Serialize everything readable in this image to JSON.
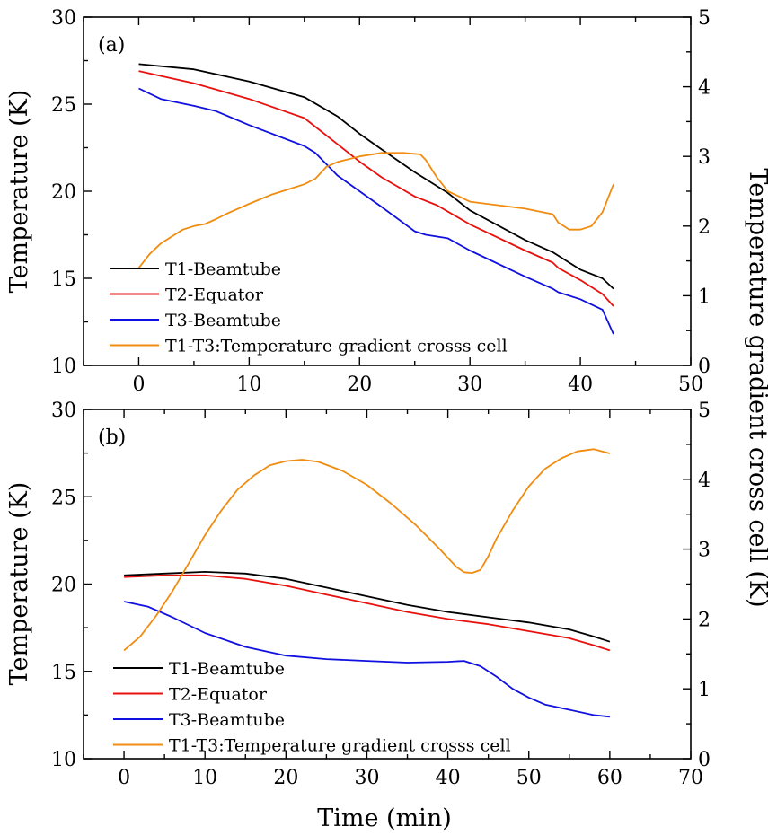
{
  "colors": {
    "t1": "#000000",
    "t2": "#e8110e",
    "t3": "#1010e0",
    "gradient": "#f08c10"
  },
  "shared": {
    "xlabel": "Time (min)",
    "ylabel_left": "Temperature (K)",
    "ylabel_right": "Temperature gradient cross cell (K)"
  },
  "chart_data": [
    {
      "type": "line",
      "panel_label": "(a)",
      "xlim": [
        -5,
        50
      ],
      "xticks": [
        0,
        10,
        20,
        30,
        40,
        50
      ],
      "ylim_left": [
        10,
        30
      ],
      "yticks_left": [
        10,
        15,
        20,
        25,
        30
      ],
      "ylim_right": [
        0,
        5
      ],
      "yticks_right": [
        0,
        1,
        2,
        3,
        4,
        5
      ],
      "grid": false,
      "legend_position": "bottom-left",
      "series": [
        {
          "name": "T1-Beamtube",
          "color_key": "t1",
          "axis": "left",
          "x": [
            0,
            5,
            10,
            15,
            18,
            20,
            22,
            25,
            28,
            30,
            35,
            37.5,
            38,
            40,
            42,
            43
          ],
          "y": [
            27.3,
            27.0,
            26.3,
            25.4,
            24.3,
            23.3,
            22.4,
            21.1,
            19.9,
            18.9,
            17.2,
            16.5,
            16.3,
            15.5,
            15.0,
            14.4
          ]
        },
        {
          "name": "T2-Equator",
          "color_key": "t2",
          "axis": "left",
          "x": [
            0,
            5,
            10,
            15,
            18,
            20,
            22,
            25,
            27,
            30,
            35,
            37.5,
            38,
            40,
            42,
            43
          ],
          "y": [
            26.9,
            26.2,
            25.3,
            24.2,
            22.7,
            21.7,
            20.8,
            19.7,
            19.2,
            18.1,
            16.6,
            15.9,
            15.6,
            14.9,
            14.1,
            13.4
          ]
        },
        {
          "name": "T3-Beamtube",
          "color_key": "t3",
          "axis": "left",
          "x": [
            0,
            2,
            5,
            7,
            10,
            15,
            16,
            18,
            20,
            22,
            25,
            26,
            28,
            30,
            35,
            37.5,
            38,
            40,
            42,
            43
          ],
          "y": [
            25.9,
            25.3,
            24.9,
            24.6,
            23.8,
            22.6,
            22.2,
            20.9,
            20.0,
            19.1,
            17.7,
            17.5,
            17.3,
            16.6,
            15.1,
            14.4,
            14.2,
            13.8,
            13.2,
            11.8
          ]
        },
        {
          "name": "T1-T3:Temperature gradient crosss cell",
          "color_key": "gradient",
          "axis": "right",
          "x": [
            0,
            1,
            2,
            3,
            4,
            5,
            6,
            7,
            8,
            9,
            10,
            12,
            14,
            15,
            16,
            17,
            18,
            20,
            22,
            24,
            25.5,
            26,
            27,
            28,
            30,
            35,
            37.5,
            38,
            39,
            40,
            41,
            42,
            43
          ],
          "y": [
            1.4,
            1.6,
            1.75,
            1.85,
            1.95,
            2.0,
            2.03,
            2.1,
            2.18,
            2.25,
            2.32,
            2.45,
            2.55,
            2.6,
            2.68,
            2.85,
            2.92,
            3.0,
            3.05,
            3.05,
            3.03,
            2.95,
            2.7,
            2.5,
            2.35,
            2.25,
            2.17,
            2.05,
            1.95,
            1.95,
            2.0,
            2.2,
            2.6
          ]
        }
      ]
    },
    {
      "type": "line",
      "panel_label": "(b)",
      "xlim": [
        -5,
        70
      ],
      "xticks": [
        0,
        10,
        20,
        30,
        40,
        50,
        60,
        70
      ],
      "ylim_left": [
        10,
        30
      ],
      "yticks_left": [
        10,
        15,
        20,
        25,
        30
      ],
      "ylim_right": [
        0,
        5
      ],
      "yticks_right": [
        0,
        1,
        2,
        3,
        4,
        5
      ],
      "grid": false,
      "legend_position": "bottom-left",
      "series": [
        {
          "name": "T1-Beamtube",
          "color_key": "t1",
          "axis": "left",
          "x": [
            0,
            5,
            10,
            15,
            20,
            25,
            30,
            35,
            40,
            45,
            50,
            55,
            58,
            60
          ],
          "y": [
            20.5,
            20.6,
            20.7,
            20.6,
            20.3,
            19.8,
            19.3,
            18.8,
            18.4,
            18.1,
            17.8,
            17.4,
            17.0,
            16.7
          ]
        },
        {
          "name": "T2-Equator",
          "color_key": "t2",
          "axis": "left",
          "x": [
            0,
            5,
            10,
            15,
            20,
            25,
            30,
            35,
            40,
            45,
            50,
            55,
            58,
            60
          ],
          "y": [
            20.4,
            20.5,
            20.5,
            20.3,
            19.9,
            19.4,
            18.9,
            18.4,
            18.0,
            17.7,
            17.3,
            16.9,
            16.5,
            16.2
          ]
        },
        {
          "name": "T3-Beamtube",
          "color_key": "t3",
          "axis": "left",
          "x": [
            0,
            3,
            6,
            10,
            15,
            20,
            25,
            30,
            35,
            40,
            42,
            44,
            46,
            48,
            50,
            52,
            55,
            58,
            60
          ],
          "y": [
            19.0,
            18.7,
            18.1,
            17.2,
            16.4,
            15.9,
            15.7,
            15.6,
            15.5,
            15.55,
            15.6,
            15.3,
            14.7,
            14.0,
            13.5,
            13.1,
            12.8,
            12.5,
            12.4
          ]
        },
        {
          "name": "T1-T3:Temperature gradient crosss cell",
          "color_key": "gradient",
          "axis": "right",
          "x": [
            0,
            2,
            4,
            6,
            8,
            10,
            12,
            14,
            16,
            18,
            20,
            22,
            24,
            27,
            30,
            33,
            36,
            39,
            41,
            42,
            43,
            44,
            45,
            46,
            48,
            50,
            52,
            54,
            56,
            58,
            60
          ],
          "y": [
            1.55,
            1.75,
            2.05,
            2.4,
            2.8,
            3.2,
            3.55,
            3.85,
            4.05,
            4.2,
            4.26,
            4.28,
            4.25,
            4.12,
            3.92,
            3.65,
            3.35,
            3.0,
            2.75,
            2.67,
            2.66,
            2.7,
            2.9,
            3.15,
            3.55,
            3.9,
            4.15,
            4.3,
            4.4,
            4.43,
            4.37
          ]
        }
      ]
    }
  ]
}
